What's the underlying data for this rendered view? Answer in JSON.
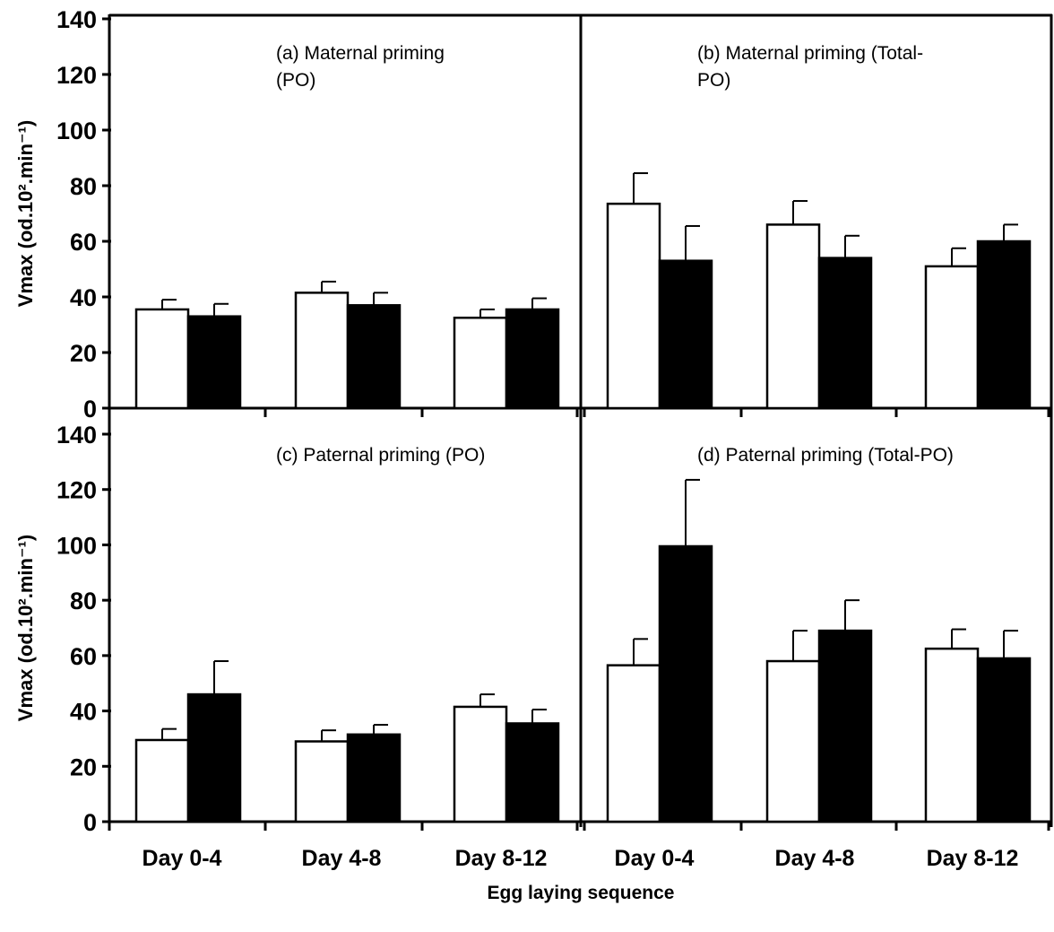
{
  "figure": {
    "xlabel": "Egg laying sequence",
    "categories": [
      "Day 0-4",
      "Day 4-8",
      "Day 8-12"
    ],
    "colors": {
      "open_bar": "#ffffff",
      "filled_bar": "#000000",
      "axis": "#000000"
    }
  },
  "chart_data": [
    {
      "type": "bar",
      "title_lines": [
        "(a) Maternal priming",
        "(PO)"
      ],
      "ylabel": "Vmax (od.10².min⁻¹)",
      "ylim": [
        0,
        140
      ],
      "yticks": [
        0,
        20,
        40,
        60,
        80,
        100,
        120,
        140
      ],
      "categories": [
        "Day 0-4",
        "Day 4-8",
        "Day 8-12"
      ],
      "series": [
        {
          "fill": "#ffffff",
          "values": [
            35.5,
            41.5,
            32.5
          ],
          "errors": [
            3.5,
            4,
            3
          ]
        },
        {
          "fill": "#000000",
          "values": [
            33,
            37,
            35.5
          ],
          "errors": [
            4.5,
            4.5,
            4
          ]
        }
      ]
    },
    {
      "type": "bar",
      "title_lines": [
        "(b) Maternal priming (Total-",
        "PO)"
      ],
      "ylabel": "",
      "ylim": [
        0,
        140
      ],
      "yticks": [],
      "categories": [
        "Day 0-4",
        "Day 4-8",
        "Day 8-12"
      ],
      "series": [
        {
          "fill": "#ffffff",
          "values": [
            73.5,
            66,
            51
          ],
          "errors": [
            11,
            8.5,
            6.5
          ]
        },
        {
          "fill": "#000000",
          "values": [
            53,
            54,
            60
          ],
          "errors": [
            12.5,
            8,
            6
          ]
        }
      ]
    },
    {
      "type": "bar",
      "title_lines": [
        "(c) Paternal priming (PO)"
      ],
      "ylabel": "Vmax (od.10².min⁻¹)",
      "ylim": [
        0,
        140
      ],
      "yticks": [
        0,
        20,
        40,
        60,
        80,
        100,
        120,
        140
      ],
      "categories": [
        "Day 0-4",
        "Day 4-8",
        "Day 8-12"
      ],
      "series": [
        {
          "fill": "#ffffff",
          "values": [
            29.5,
            29,
            41.5
          ],
          "errors": [
            4,
            4,
            4.5
          ]
        },
        {
          "fill": "#000000",
          "values": [
            46,
            31.5,
            35.5
          ],
          "errors": [
            12,
            3.5,
            5
          ]
        }
      ]
    },
    {
      "type": "bar",
      "title_lines": [
        "(d) Paternal priming (Total-PO)"
      ],
      "ylabel": "",
      "ylim": [
        0,
        140
      ],
      "yticks": [],
      "categories": [
        "Day 0-4",
        "Day 4-8",
        "Day 8-12"
      ],
      "series": [
        {
          "fill": "#ffffff",
          "values": [
            56.5,
            58,
            62.5
          ],
          "errors": [
            9.5,
            11,
            7
          ]
        },
        {
          "fill": "#000000",
          "values": [
            99.5,
            69,
            59
          ],
          "errors": [
            24,
            11,
            10
          ]
        }
      ]
    }
  ]
}
